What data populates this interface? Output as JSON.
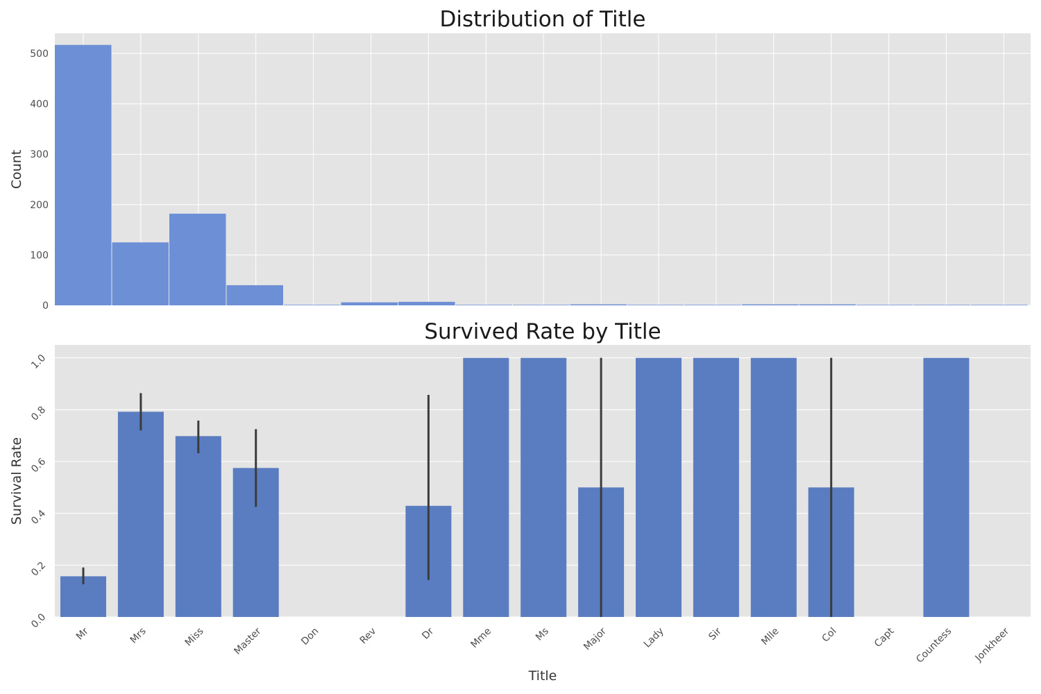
{
  "colors": {
    "panel_background": "#e4e4e4",
    "grid": "#ffffff",
    "hist_bar": "#6c8fd6",
    "bar": "#5a7cc0",
    "error_bar": "#3b3b3b",
    "text": "#1a1a1a"
  },
  "chart_data": [
    {
      "type": "bar",
      "title": "Distribution of Title",
      "xlabel": "",
      "ylabel": "Count",
      "categories": [
        "Mr",
        "Mrs",
        "Miss",
        "Master",
        "Don",
        "Rev",
        "Dr",
        "Mme",
        "Ms",
        "Major",
        "Lady",
        "Sir",
        "Mlle",
        "Col",
        "Capt",
        "Countess",
        "Jonkheer"
      ],
      "values": [
        517,
        125,
        182,
        40,
        1,
        6,
        7,
        1,
        1,
        2,
        1,
        1,
        2,
        2,
        1,
        1,
        1
      ],
      "ylim": [
        0,
        540
      ],
      "yticks": [
        0,
        100,
        200,
        300,
        400,
        500
      ],
      "grid": true,
      "x_tick_labels_shown": false
    },
    {
      "type": "bar",
      "title": "Survived Rate by Title",
      "xlabel": "Title",
      "ylabel": "Survival Rate",
      "categories": [
        "Mr",
        "Mrs",
        "Miss",
        "Master",
        "Don",
        "Rev",
        "Dr",
        "Mme",
        "Ms",
        "Major",
        "Lady",
        "Sir",
        "Mlle",
        "Col",
        "Capt",
        "Countess",
        "Jonkheer"
      ],
      "values": [
        0.157,
        0.792,
        0.698,
        0.575,
        0.0,
        0.0,
        0.429,
        1.0,
        1.0,
        0.5,
        1.0,
        1.0,
        1.0,
        0.5,
        0.0,
        1.0,
        0.0
      ],
      "error_bars": [
        [
          0.126,
          0.191
        ],
        [
          0.72,
          0.864
        ],
        [
          0.632,
          0.758
        ],
        [
          0.425,
          0.725
        ],
        null,
        null,
        [
          0.143,
          0.857
        ],
        null,
        null,
        [
          0.0,
          1.0
        ],
        null,
        null,
        null,
        [
          0.0,
          1.0
        ],
        null,
        null,
        null
      ],
      "ylim": [
        0,
        1.05
      ],
      "yticks": [
        "0.0",
        "0.2",
        "0.4",
        "0.6",
        "0.8",
        "1.0"
      ],
      "grid": true
    }
  ]
}
